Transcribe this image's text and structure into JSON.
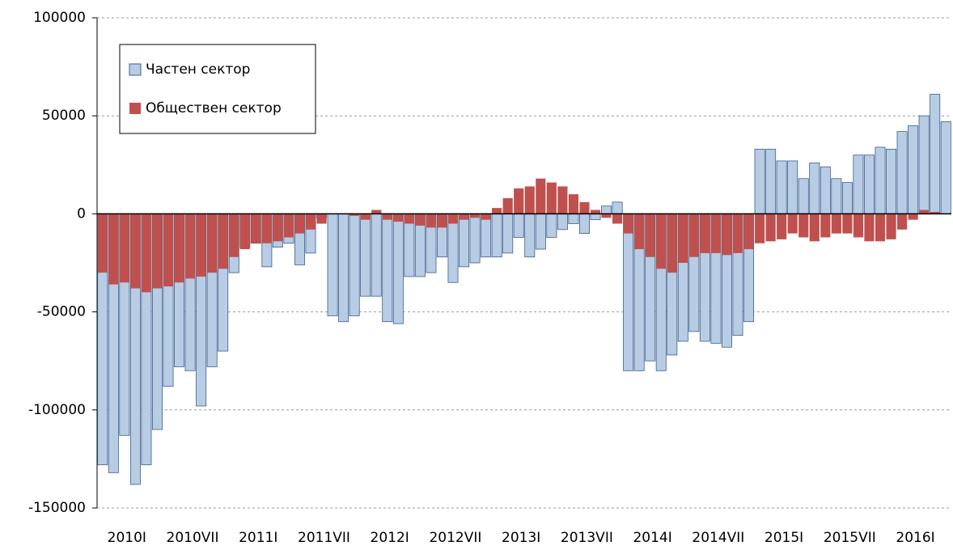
{
  "chart_data": {
    "type": "bar",
    "categories": [
      "2010I",
      null,
      null,
      null,
      null,
      null,
      "2010VII",
      null,
      null,
      null,
      null,
      null,
      "2011I",
      null,
      null,
      null,
      null,
      null,
      "2011VII",
      null,
      null,
      null,
      null,
      null,
      "2012I",
      null,
      null,
      null,
      null,
      null,
      "2012VII",
      null,
      null,
      null,
      null,
      null,
      "2013I",
      null,
      null,
      null,
      null,
      null,
      "2013VII",
      null,
      null,
      null,
      null,
      null,
      "2014I",
      null,
      null,
      null,
      null,
      null,
      "2014VII",
      null,
      null,
      null,
      null,
      null,
      "2015I",
      null,
      null,
      null,
      null,
      null,
      "2015VII",
      null,
      null,
      null,
      null,
      null,
      "2016I",
      null,
      null,
      null,
      null,
      null
    ],
    "series": [
      {
        "name": "Частен сектор",
        "color": "#b8cce4",
        "values": [
          -128000,
          -132000,
          -113000,
          -138000,
          -128000,
          -110000,
          -88000,
          -78000,
          -80000,
          -98000,
          -78000,
          -70000,
          -30000,
          -17000,
          -15000,
          -27000,
          -17000,
          -15000,
          -26000,
          -20000,
          -2000,
          -52000,
          -55000,
          -52000,
          -42000,
          -42000,
          -55000,
          -56000,
          -32000,
          -32000,
          -30000,
          -22000,
          -35000,
          -27000,
          -25000,
          -22000,
          -22000,
          -20000,
          -12000,
          -22000,
          -18000,
          -12000,
          -8000,
          -5000,
          -10000,
          -3000,
          4000,
          6000,
          -80000,
          -80000,
          -75000,
          -80000,
          -72000,
          -65000,
          -60000,
          -65000,
          -66000,
          -68000,
          -62000,
          -55000,
          33000,
          33000,
          27000,
          27000,
          18000,
          26000,
          24000,
          18000,
          16000,
          30000,
          30000,
          34000,
          33000,
          42000,
          45000,
          50000,
          61000,
          47000
        ]
      },
      {
        "name": "Обществен сектор",
        "color": "#c0504d",
        "values": [
          -30000,
          -36000,
          -35000,
          -38000,
          -40000,
          -38000,
          -37000,
          -35000,
          -33000,
          -32000,
          -30000,
          -28000,
          -22000,
          -18000,
          -15000,
          -15000,
          -14000,
          -12000,
          -10000,
          -8000,
          -5000,
          0,
          0,
          -1000,
          -3000,
          2000,
          -3000,
          -4000,
          -5000,
          -6000,
          -7000,
          -7000,
          -5000,
          -3000,
          -2000,
          -3000,
          3000,
          8000,
          13000,
          14000,
          18000,
          16000,
          14000,
          10000,
          6000,
          2000,
          -2000,
          -5000,
          -10000,
          -18000,
          -22000,
          -28000,
          -30000,
          -25000,
          -22000,
          -20000,
          -20000,
          -21000,
          -20000,
          -18000,
          -15000,
          -14000,
          -13000,
          -10000,
          -12000,
          -14000,
          -12000,
          -10000,
          -10000,
          -12000,
          -14000,
          -14000,
          -13000,
          -8000,
          -3000,
          2000,
          1000,
          0
        ]
      }
    ],
    "ylim": [
      -150000,
      100000
    ],
    "yticks": [
      100000,
      50000,
      0,
      -50000,
      -100000,
      -150000
    ],
    "grid": true,
    "legend": "upper left"
  }
}
